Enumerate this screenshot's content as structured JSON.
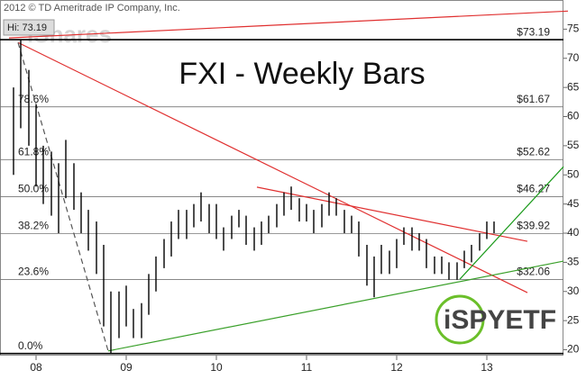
{
  "chart_data": {
    "type": "ohlc",
    "title": "FXI - Weekly Bars",
    "copyright": "2012 © TD Ameritrade IP Company, Inc.",
    "hi_label": "Hi: 73.19",
    "watermark": "iShares",
    "logo": "iSPYETF",
    "color": "#000000",
    "x": [
      2007.75,
      2007.83,
      2007.92,
      2008.0,
      2008.08,
      2008.17,
      2008.25,
      2008.33,
      2008.42,
      2008.5,
      2008.58,
      2008.67,
      2008.75,
      2008.83,
      2008.92,
      2009.0,
      2009.08,
      2009.17,
      2009.25,
      2009.33,
      2009.42,
      2009.5,
      2009.58,
      2009.67,
      2009.75,
      2009.83,
      2009.92,
      2010.0,
      2010.08,
      2010.17,
      2010.25,
      2010.33,
      2010.42,
      2010.5,
      2010.58,
      2010.67,
      2010.75,
      2010.83,
      2010.92,
      2011.0,
      2011.08,
      2011.17,
      2011.25,
      2011.33,
      2011.42,
      2011.5,
      2011.58,
      2011.67,
      2011.75,
      2011.83,
      2011.92,
      2012.0,
      2012.08,
      2012.17,
      2012.25,
      2012.33,
      2012.42,
      2012.5,
      2012.58,
      2012.67,
      2012.75,
      2012.83,
      2012.92,
      2013.0,
      2013.08
    ],
    "high": [
      65,
      73.19,
      68,
      62,
      55,
      54,
      52,
      56,
      52,
      47,
      44,
      42,
      38,
      30,
      30,
      31,
      27,
      28,
      33,
      36,
      39,
      42,
      44,
      44,
      45,
      47,
      45,
      45,
      41,
      43,
      44,
      43,
      41,
      42,
      43,
      45,
      47,
      48,
      46,
      45,
      44,
      45,
      47,
      46,
      44,
      43,
      42,
      38,
      36,
      38,
      37,
      39,
      41,
      41,
      40,
      39,
      36,
      36,
      35,
      35,
      37,
      38,
      40,
      42,
      42
    ],
    "low": [
      50,
      58,
      55,
      48,
      45,
      43,
      40,
      46,
      44,
      40,
      37,
      33,
      24,
      19.35,
      22,
      24,
      22,
      22,
      26,
      30,
      34,
      36,
      39,
      39,
      41,
      42,
      40,
      39,
      37,
      39,
      41,
      38,
      37,
      38,
      40,
      41,
      43,
      44,
      42,
      42,
      40,
      41,
      43,
      43,
      40,
      40,
      36,
      31,
      29,
      33,
      33,
      34,
      38,
      37,
      37,
      34,
      33,
      33,
      32,
      32,
      34,
      35,
      37,
      39,
      40
    ],
    "levels": [
      {
        "value": 73.19,
        "label": "$73.19"
      },
      {
        "value": 61.67,
        "label": "$61.67",
        "fib": "78.6%"
      },
      {
        "value": 52.62,
        "label": "$52.62",
        "fib": "61.8%"
      },
      {
        "value": 46.27,
        "label": "$46.27",
        "fib": "50.0%"
      },
      {
        "value": 39.92,
        "label": "$39.92",
        "fib": "38.2%"
      },
      {
        "value": 32.06,
        "label": "$32.06",
        "fib": "23.6%"
      },
      {
        "value": 19.35,
        "fib": "0.0%"
      }
    ],
    "trendlines": [
      {
        "color": "#e03030",
        "x": [
          2007.7,
          2013.9
        ],
        "y": [
          73.5,
          78.1
        ]
      },
      {
        "color": "#e03030",
        "x": [
          2007.8,
          2013.45
        ],
        "y": [
          72.7,
          29.8
        ]
      },
      {
        "color": "#e03030",
        "x": [
          2010.45,
          2013.45
        ],
        "y": [
          47.9,
          38.6
        ]
      },
      {
        "color": "#3aa02a",
        "x": [
          2008.8,
          2013.85
        ],
        "y": [
          19.8,
          35.2
        ]
      },
      {
        "color": "#1a9a1a",
        "x": [
          2012.7,
          2013.85
        ],
        "y": [
          32.1,
          51.4
        ]
      },
      {
        "color": "#555555",
        "dashed": true,
        "x": [
          2007.8,
          2008.8
        ],
        "y": [
          72.7,
          19.8
        ]
      }
    ],
    "xlim": [
      2007.6,
      2013.85
    ],
    "ylim": [
      19,
      80
    ],
    "xticks": [
      {
        "value": 2008,
        "label": "08"
      },
      {
        "value": 2009,
        "label": "09"
      },
      {
        "value": 2010,
        "label": "10"
      },
      {
        "value": 2011,
        "label": "11"
      },
      {
        "value": 2012,
        "label": "12"
      },
      {
        "value": 2013,
        "label": "13"
      }
    ],
    "yticks": [
      20,
      25,
      30,
      35,
      40,
      45,
      50,
      55,
      60,
      65,
      70,
      75
    ]
  }
}
